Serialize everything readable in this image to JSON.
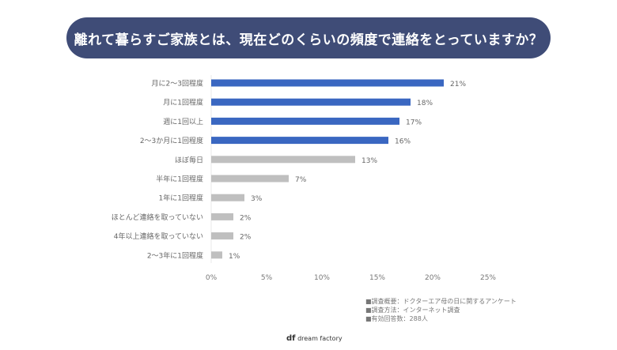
{
  "chart_data": {
    "type": "bar",
    "orientation": "horizontal",
    "title": "離れて暮らすご家族とは、現在どのくらいの頻度で連絡をとっていますか？",
    "categories": [
      "月に2～3回程度",
      "月に1回程度",
      "週に1回以上",
      "2～3か月に1回程度",
      "ほぼ毎日",
      "半年に1回程度",
      "1年に1回程度",
      "ほとんど連絡を取っていない",
      "4年以上連絡を取っていない",
      "2～3年に1回程度"
    ],
    "values": [
      21,
      18,
      17,
      16,
      13,
      7,
      3,
      2,
      2,
      1
    ],
    "data_labels": [
      "21%",
      "18%",
      "17%",
      "16%",
      "13%",
      "7%",
      "3%",
      "2%",
      "2%",
      "1%"
    ],
    "highlighted": [
      true,
      true,
      true,
      true,
      false,
      false,
      false,
      false,
      false,
      false
    ],
    "xlim": [
      0,
      25
    ],
    "xticks": [
      "0%",
      "5%",
      "10%",
      "15%",
      "20%",
      "25%"
    ],
    "grid": false,
    "colors": {
      "highlight": "#3a67c1",
      "default": "#bfbfbf",
      "title_bg": "#3f4c77"
    }
  },
  "notes": [
    "■調査概要：ドクターエア母の日に関するアンケート",
    "■調査方法：インターネット調査",
    "■有効回答数：288人"
  ],
  "logo": {
    "mark": "df",
    "text": "dream factory"
  }
}
